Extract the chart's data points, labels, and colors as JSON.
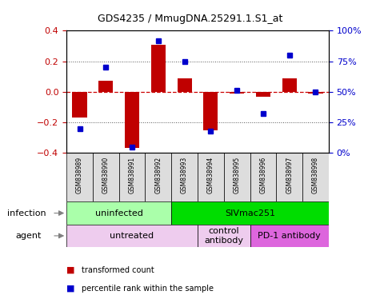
{
  "title": "GDS4235 / MmugDNA.25291.1.S1_at",
  "samples": [
    "GSM838989",
    "GSM838990",
    "GSM838991",
    "GSM838992",
    "GSM838993",
    "GSM838994",
    "GSM838995",
    "GSM838996",
    "GSM838997",
    "GSM838998"
  ],
  "bar_values": [
    -0.17,
    0.07,
    -0.37,
    0.31,
    0.09,
    -0.25,
    -0.01,
    -0.03,
    0.09,
    -0.01
  ],
  "dot_values": [
    20,
    70,
    5,
    92,
    75,
    18,
    51,
    32,
    80,
    50
  ],
  "bar_color": "#C00000",
  "dot_color": "#0000CC",
  "ylim": [
    -0.4,
    0.4
  ],
  "y2lim": [
    0,
    100
  ],
  "yticks": [
    -0.4,
    -0.2,
    0.0,
    0.2,
    0.4
  ],
  "y2ticks": [
    0,
    25,
    50,
    75,
    100
  ],
  "y2ticklabels": [
    "0%",
    "25%",
    "50%",
    "75%",
    "100%"
  ],
  "infection_labels": [
    {
      "text": "uninfected",
      "start": 0,
      "end": 3,
      "color": "#AAFFAA"
    },
    {
      "text": "SIVmac251",
      "start": 4,
      "end": 9,
      "color": "#00DD00"
    }
  ],
  "agent_labels": [
    {
      "text": "untreated",
      "start": 0,
      "end": 4,
      "color": "#EECCEE"
    },
    {
      "text": "control\nantibody",
      "start": 5,
      "end": 6,
      "color": "#EECCEE"
    },
    {
      "text": "PD-1 antibody",
      "start": 7,
      "end": 9,
      "color": "#DD66DD"
    }
  ],
  "legend_bar_label": "transformed count",
  "legend_dot_label": "percentile rank within the sample",
  "row_label_infection": "infection",
  "row_label_agent": "agent",
  "sample_bg_color": "#DDDDDD",
  "zero_line_color": "#CC0000",
  "grid_line_color": "#555555"
}
